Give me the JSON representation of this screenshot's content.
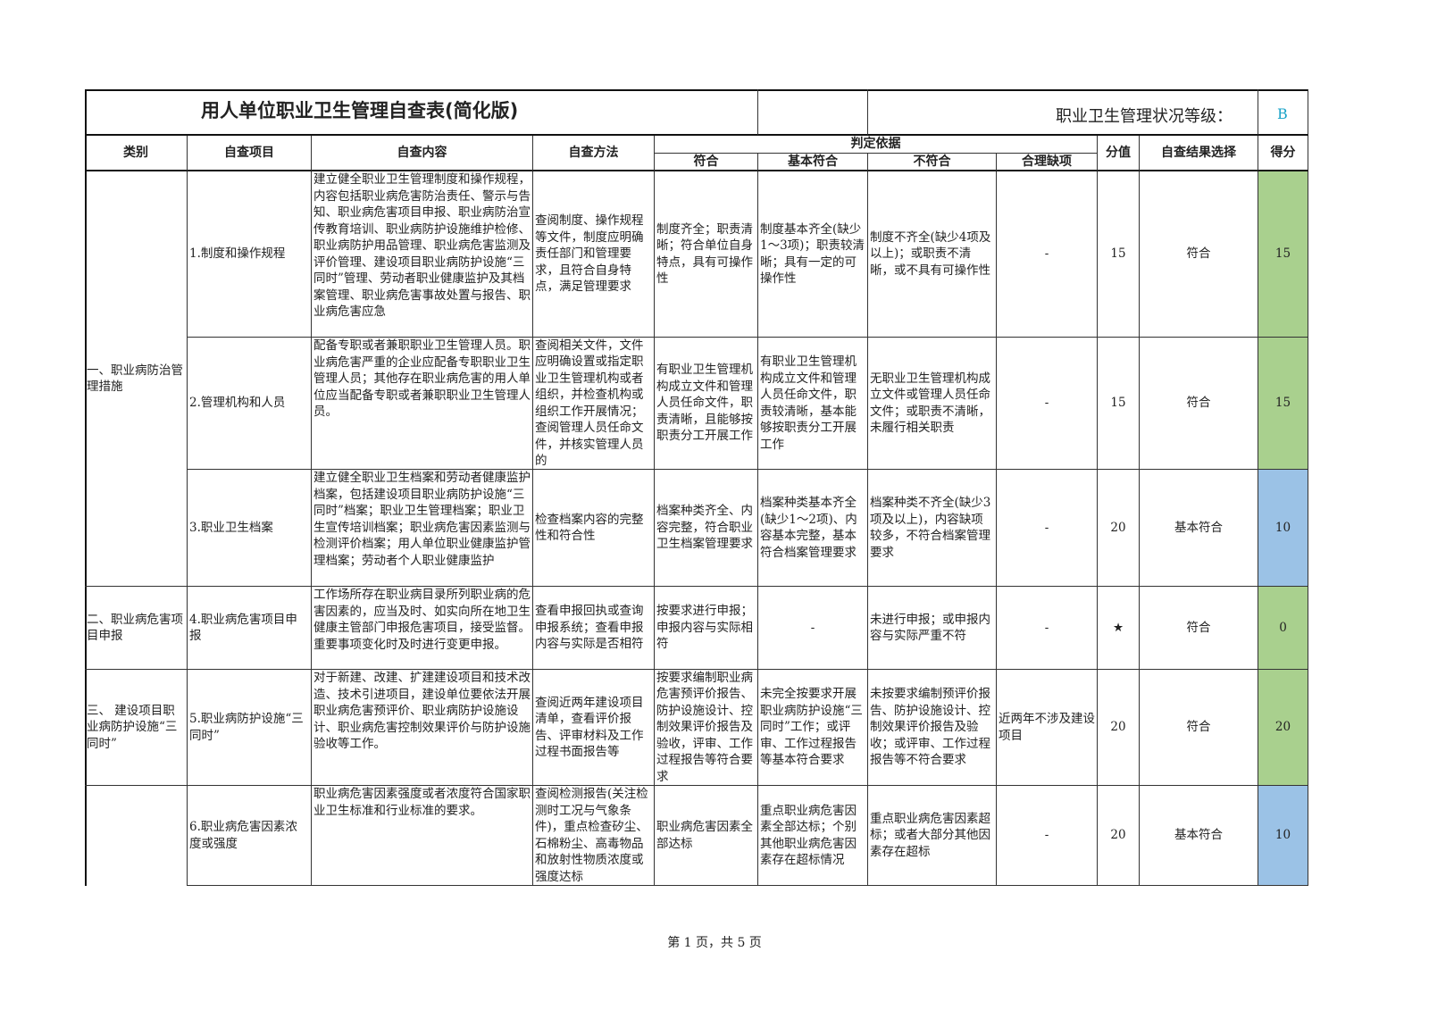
{
  "title": "用人单位职业卫生管理自查表(简化版)",
  "grade_label": "职业卫生管理状况等级：",
  "grade": "B",
  "headers": {
    "category": "类别",
    "item": "自查项目",
    "content": "自查内容",
    "method": "自查方法",
    "basis": "判定依据",
    "conform": "符合",
    "basic_conform": "基本符合",
    "nonconform": "不符合",
    "reasonable_missing": "合理缺项",
    "points": "分值",
    "result": "自查结果选择",
    "score": "得分"
  },
  "colors": {
    "score_green": "#a9d08e",
    "score_blue": "#9bc2e6",
    "grade": "#1aa3c8"
  },
  "categories": [
    {
      "label": "一、职业病防治管理措施"
    },
    {
      "label": "二、职业病危害项目申报"
    },
    {
      "label": "三、 建设项目职业病防护设施“三同时”"
    },
    {
      "label": ""
    }
  ],
  "rows": [
    {
      "item": "1.制度和操作规程",
      "content": "建立健全职业卫生管理制度和操作规程，内容包括职业病危害防治责任、警示与告知、职业病危害项目申报、职业病防治宣传教育培训、职业病防护设施维护检修、职业病防护用品管理、职业病危害监测及评价管理、建设项目职业病防护设施“三同时”管理、劳动者职业健康监护及其档案管理、职业病危害事故处置与报告、职业病危害应急",
      "method": "查阅制度、操作规程等文件，制度应明确责任部门和管理要求，且符合自身特点，满足管理要求",
      "conform": "制度齐全；职责清晰；符合单位自身特点，具有可操作性",
      "basic": "制度基本齐全(缺少1～3项)；职责较清晰；具有一定的可操作性",
      "non": "制度不齐全(缺少4项及以上)；或职责不清晰，或不具有可操作性",
      "missing": "-",
      "points": "15",
      "result": "符合",
      "score": "15",
      "score_color": "green"
    },
    {
      "item": "2.管理机构和人员",
      "content": "配备专职或者兼职职业卫生管理人员。职业病危害严重的企业应配备专职职业卫生管理人员；其他存在职业病危害的用人单位应当配备专职或者兼职职业卫生管理人员。",
      "method": "查阅相关文件，文件应明确设置或指定职业卫生管理机构或者组织，并检查机构或组织工作开展情况；查阅管理人员任命文件，并核实管理人员的",
      "conform": "有职业卫生管理机构成立文件和管理人员任命文件，职责清晰，且能够按职责分工开展工作",
      "basic": "有职业卫生管理机构成立文件和管理人员任命文件，职责较清晰，基本能够按职责分工开展工作",
      "non": "无职业卫生管理机构成立文件或管理人员任命文件；或职责不清晰，未履行相关职责",
      "missing": "-",
      "points": "15",
      "result": "符合",
      "score": "15",
      "score_color": "green"
    },
    {
      "item": "3.职业卫生档案",
      "content": "建立健全职业卫生档案和劳动者健康监护档案，包括建设项目职业病防护设施“三同时”档案；职业卫生管理档案；职业卫生宣传培训档案；职业病危害因素监测与检测评价档案；用人单位职业健康监护管理档案；劳动者个人职业健康监护",
      "method": "检查档案内容的完整性和符合性",
      "conform": "档案种类齐全、内容完整，符合职业卫生档案管理要求",
      "basic": "档案种类基本齐全(缺少1～2项)、内容基本完整，基本符合档案管理要求",
      "non": "档案种类不齐全(缺少3项及以上)，内容缺项较多，不符合档案管理要求",
      "missing": "-",
      "points": "20",
      "result": "基本符合",
      "score": "10",
      "score_color": "blue"
    },
    {
      "item": "4.职业病危害项目申报",
      "content": "工作场所存在职业病目录所列职业病的危害因素的，应当及时、如实向所在地卫生健康主管部门申报危害项目，接受监督。重要事项变化时及时进行变更申报。",
      "method": "查看申报回执或查询申报系统；查看申报内容与实际是否相符",
      "conform": "按要求进行申报；申报内容与实际相符",
      "basic": "-",
      "non": "未进行申报；或申报内容与实际严重不符",
      "missing": "-",
      "points": "★",
      "result": "符合",
      "score": "0",
      "score_color": "green"
    },
    {
      "item": "5.职业病防护设施“三同时”",
      "content": "对于新建、改建、扩建建设项目和技术改造、技术引进项目，建设单位要依法开展职业病危害预评价、职业病防护设施设计、职业病危害控制效果评价与防护设施验收等工作。",
      "method": "查阅近两年建设项目清单，查看评价报告、评审材料及工作过程书面报告等",
      "conform": "按要求编制职业病危害预评价报告、防护设施设计、控制效果评价报告及验收，评审、工作过程报告等符合要求",
      "basic": "未完全按要求开展职业病防护设施“三同时”工作；或评审、工作过程报告等基本符合要求",
      "non": "未按要求编制预评价报告、防护设施设计、控制效果评价报告及验收；或评审、工作过程报告等不符合要求",
      "missing": "近两年不涉及建设项目",
      "points": "20",
      "result": "符合",
      "score": "20",
      "score_color": "green"
    },
    {
      "item": "6.职业病危害因素浓度或强度",
      "content": "职业病危害因素强度或者浓度符合国家职业卫生标准和行业标准的要求。",
      "method": "查阅检测报告(关注检测时工况与气象条件)，重点检查矽尘、石棉粉尘、高毒物品和放射性物质浓度或强度达标",
      "conform": "职业病危害因素全部达标",
      "basic": "重点职业病危害因素全部达标；个别其他职业病危害因素存在超标情况",
      "non": "重点职业病危害因素超标；或者大部分其他因素存在超标",
      "missing": "-",
      "points": "20",
      "result": "基本符合",
      "score": "10",
      "score_color": "blue"
    }
  ],
  "footer": "第 1 页，共 5 页"
}
